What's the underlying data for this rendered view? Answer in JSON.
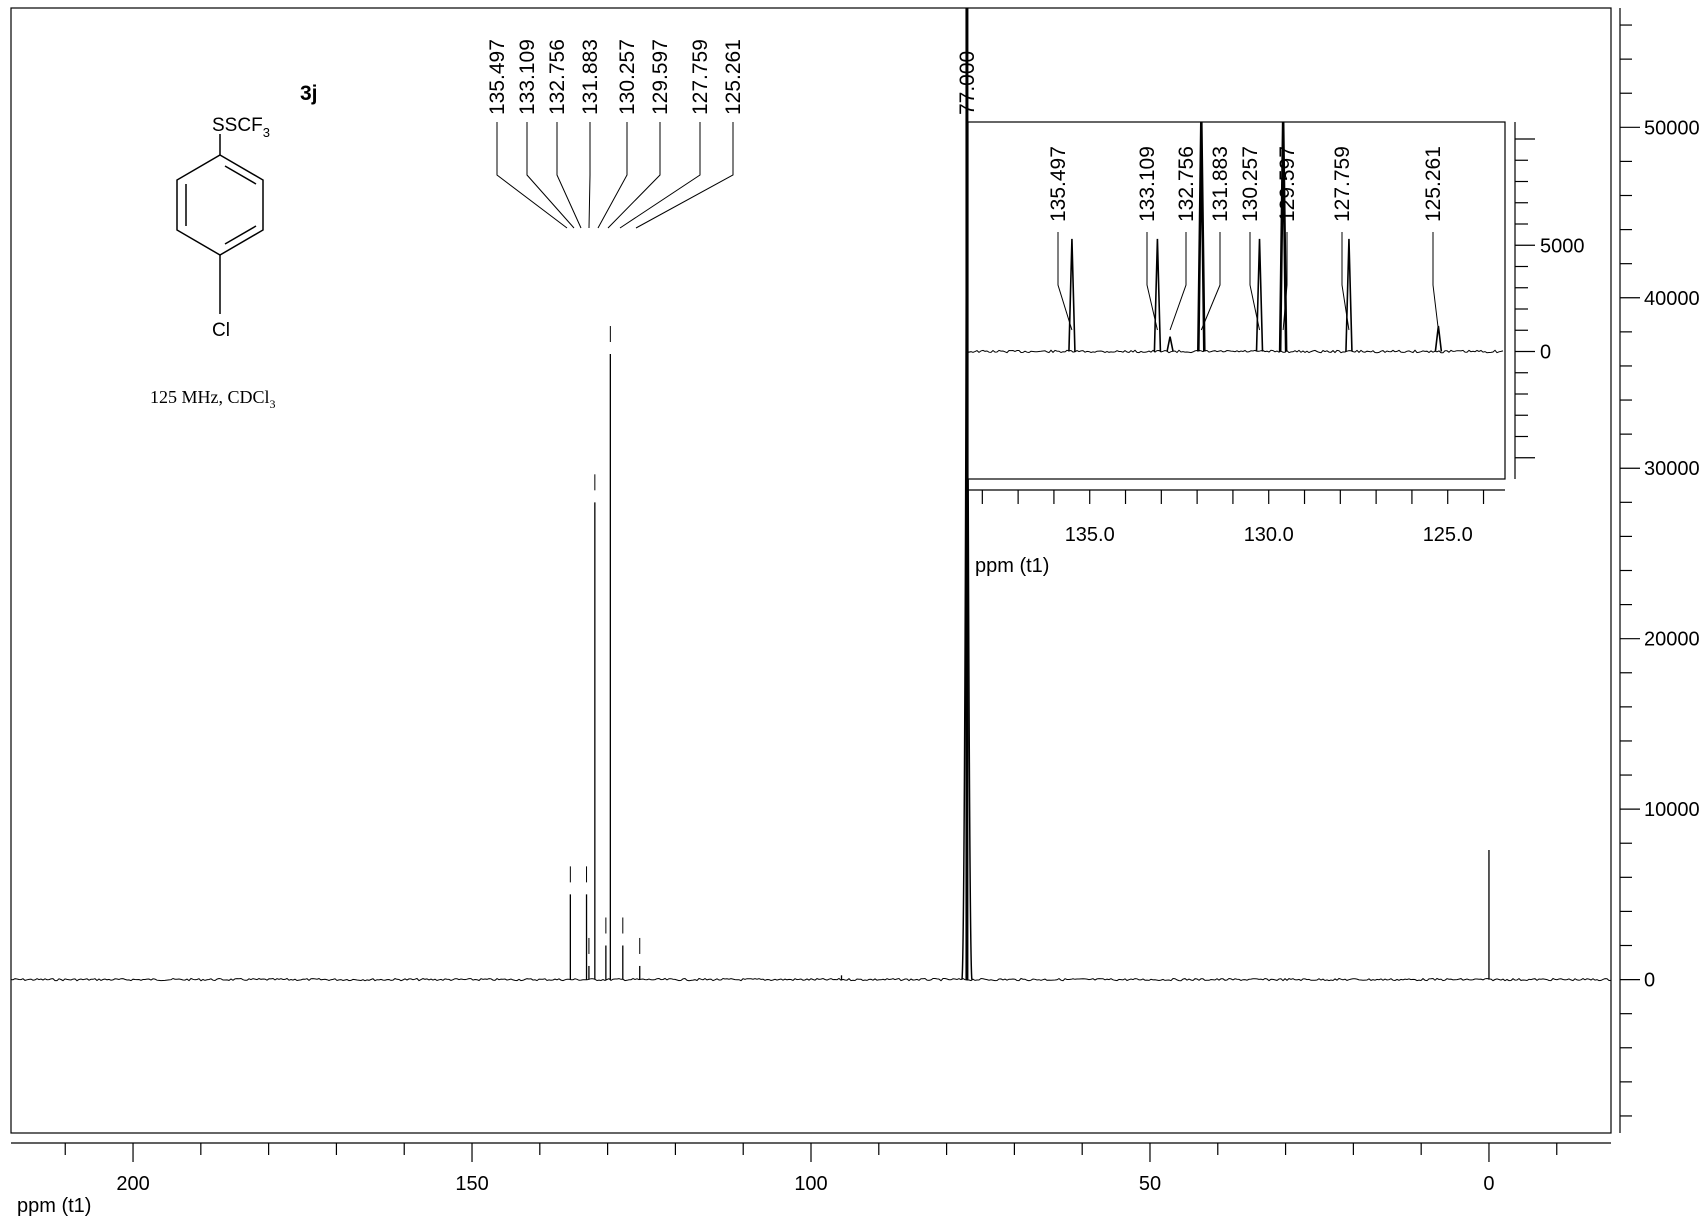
{
  "compound_label": "3j",
  "structure": {
    "top_group": "SSCF",
    "top_group_subscript": "3",
    "bottom_atom": "Cl"
  },
  "conditions": {
    "text": "125 MHz, CDCl",
    "subscript": "3"
  },
  "chart_data": [
    {
      "type": "line",
      "name": "main-spectrum",
      "xlabel": "ppm (t1)",
      "ylabel": "",
      "xlim": [
        218,
        -18
      ],
      "ylim": [
        -9000,
        57000
      ],
      "x_ticks_labeled": [
        200,
        150,
        100,
        50,
        0
      ],
      "y_ticks_labeled": [
        0,
        10000,
        20000,
        30000,
        40000,
        50000
      ],
      "y_tick_labels": [
        "0",
        "10000",
        "20000",
        "30000",
        "40000",
        "50000"
      ],
      "peak_labels": [
        "135.497",
        "133.109",
        "132.756",
        "131.883",
        "130.257",
        "129.597",
        "127.759",
        "125.261",
        "77.000"
      ],
      "peaks": [
        {
          "x": 135.497,
          "y": 5000
        },
        {
          "x": 133.109,
          "y": 5000
        },
        {
          "x": 132.756,
          "y": 800
        },
        {
          "x": 131.883,
          "y": 28000
        },
        {
          "x": 130.257,
          "y": 2000
        },
        {
          "x": 129.597,
          "y": 36700
        },
        {
          "x": 127.759,
          "y": 2000
        },
        {
          "x": 125.261,
          "y": 800
        },
        {
          "x": 95.5,
          "y": 250
        },
        {
          "x": 77.0,
          "y": 57000
        },
        {
          "x": 0.0,
          "y": 7600
        }
      ]
    },
    {
      "type": "line",
      "name": "inset-spectrum",
      "xlabel": "ppm (t1)",
      "xlim": [
        138.4,
        123.4
      ],
      "ylim": [
        -6000,
        10800
      ],
      "x_ticks_labeled": [
        135.0,
        130.0,
        125.0
      ],
      "x_tick_labels": [
        "135.0",
        "130.0",
        "125.0"
      ],
      "y_ticks_labeled": [
        0,
        5000
      ],
      "y_tick_labels": [
        "0",
        "5000"
      ],
      "peak_labels": [
        "135.497",
        "133.109",
        "132.756",
        "131.883",
        "130.257",
        "129.597",
        "127.759",
        "125.261"
      ],
      "peaks": [
        {
          "x": 135.497,
          "y": 5300
        },
        {
          "x": 133.109,
          "y": 5300
        },
        {
          "x": 132.756,
          "y": 700
        },
        {
          "x": 131.883,
          "y": 10800
        },
        {
          "x": 130.257,
          "y": 5300
        },
        {
          "x": 129.597,
          "y": 10800
        },
        {
          "x": 127.759,
          "y": 5300
        },
        {
          "x": 125.261,
          "y": 1200
        }
      ]
    }
  ]
}
